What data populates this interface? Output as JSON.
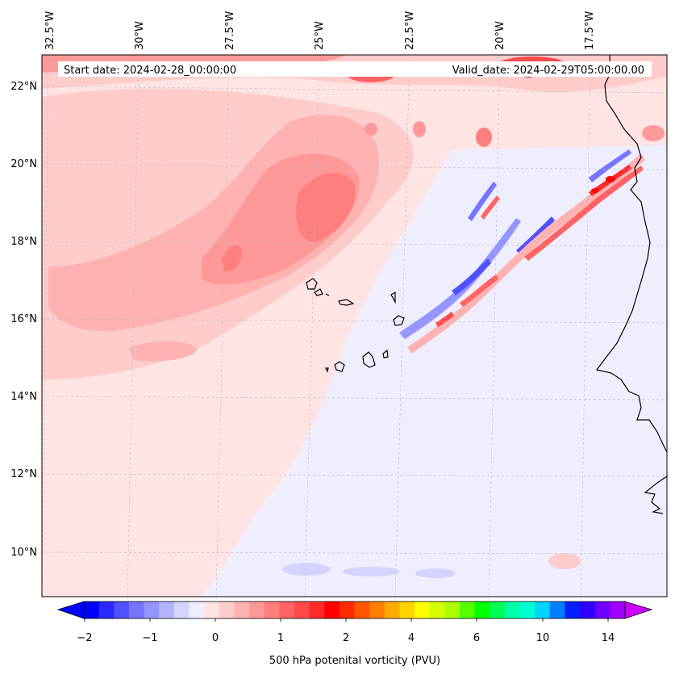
{
  "figure": {
    "start_date_text": "Start date: 2024-02-28_00:00:00",
    "valid_date_text": "Valid_date: 2024-02-29T05:00:00.00"
  },
  "map": {
    "longitude_labels": [
      "32.5°W",
      "30°W",
      "27.5°W",
      "25°W",
      "22.5°W",
      "20°W",
      "17.5°W"
    ],
    "latitude_labels": [
      "22°N",
      "20°N",
      "18°N",
      "16°N",
      "14°N",
      "12°N",
      "10°N"
    ],
    "field": "500 hPa potential vorticity",
    "units": "PVU",
    "background_level_color": "#ffe4e4",
    "coastline_color": "#000000"
  },
  "colorbar": {
    "label": "500 hPa potenital vorticity (PVU)",
    "tick_labels": [
      "−2",
      "−1",
      "0",
      "1",
      "2",
      "4",
      "6",
      "10",
      "14"
    ],
    "extend": "both",
    "colors": [
      "#0000ff",
      "#2a2aff",
      "#5050ff",
      "#7575ff",
      "#9595ff",
      "#b5b5ff",
      "#d4d4ff",
      "#eeeeff",
      "#ffe4e4",
      "#ffcccc",
      "#ffb2b2",
      "#ff9999",
      "#ff7f7f",
      "#ff6363",
      "#ff4a4a",
      "#ff2a2a",
      "#ff0000",
      "#ff2a00",
      "#ff5500",
      "#ff7f00",
      "#ffaa00",
      "#ffd400",
      "#ffff00",
      "#d4ff00",
      "#aaff00",
      "#55ff00",
      "#00ff00",
      "#00ff55",
      "#00ffaa",
      "#00ffd4",
      "#00d4ff",
      "#0080ff",
      "#0020ff",
      "#3000ff",
      "#7000ff",
      "#a000ff"
    ],
    "under_color": "#0000ff",
    "over_color": "#cc00ff"
  }
}
